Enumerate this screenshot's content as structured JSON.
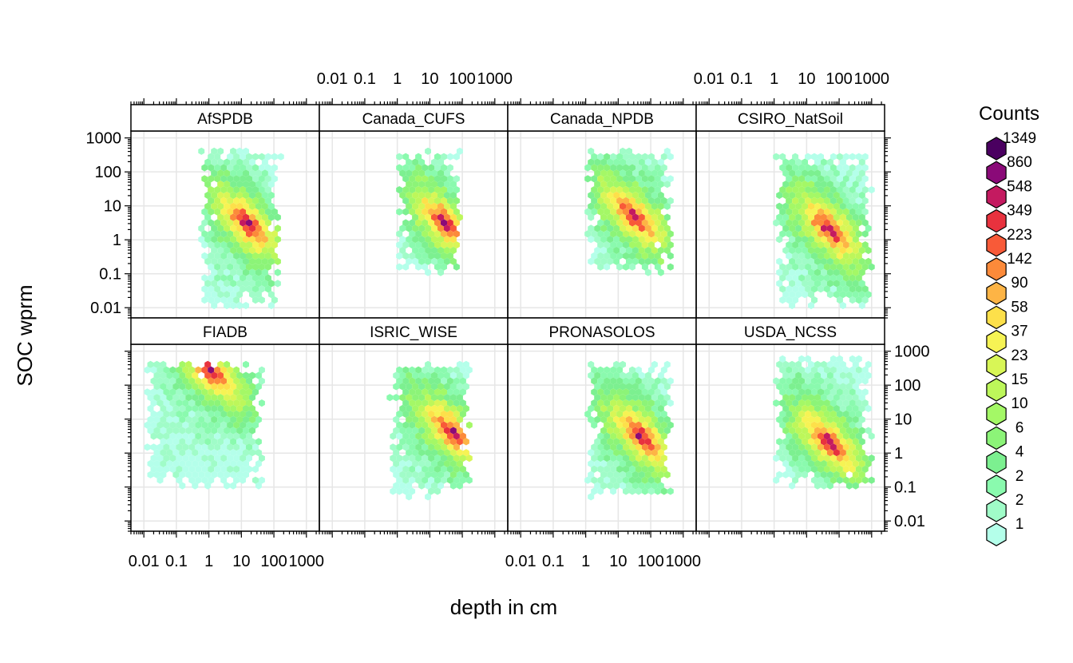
{
  "chart_data": {
    "type": "heatmap",
    "subtype": "hexbin",
    "xlabel": "depth in cm",
    "ylabel": "SOC wprm",
    "x_scale": "log10",
    "y_scale": "log10",
    "x_ticks": [
      "0.01",
      "0.1",
      "1",
      "10",
      "100",
      "1000"
    ],
    "y_ticks": [
      "0.01",
      "0.1",
      "1",
      "10",
      "100",
      "1000"
    ],
    "xlim": [
      0.004,
      2500
    ],
    "ylim": [
      0.005,
      1600
    ],
    "grid": true,
    "legend": {
      "title": "Counts",
      "position": "right",
      "labels": [
        "1349",
        "860",
        "548",
        "349",
        "223",
        "142",
        "90",
        "58",
        "37",
        "23",
        "15",
        "10",
        "6",
        "4",
        "2",
        "2",
        "1"
      ],
      "colors": [
        "#4a0060",
        "#8a0a78",
        "#c41a60",
        "#e8323e",
        "#f85a38",
        "#fc8a3a",
        "#fdb445",
        "#fde04a",
        "#f6f354",
        "#d8f656",
        "#bdf75a",
        "#a4f866",
        "#8cf478",
        "#7cf090",
        "#8afaae",
        "#a0fcc8",
        "#b4ffea"
      ]
    },
    "panels": [
      {
        "name": "AfSPDB",
        "row": 0,
        "col": 0,
        "x_range": [
          0.5,
          200
        ],
        "y_range": [
          0.01,
          500
        ],
        "peak": {
          "x": 15,
          "y": 3
        }
      },
      {
        "name": "Canada_CUFS",
        "row": 0,
        "col": 1,
        "x_range": [
          1,
          100
        ],
        "y_range": [
          0.1,
          500
        ],
        "peak": {
          "x": 30,
          "y": 3
        }
      },
      {
        "name": "Canada_NPDB",
        "row": 0,
        "col": 2,
        "x_range": [
          1,
          500
        ],
        "y_range": [
          0.1,
          500
        ],
        "peak": {
          "x": 30,
          "y": 5
        }
      },
      {
        "name": "CSIRO_NatSoil",
        "row": 0,
        "col": 3,
        "x_range": [
          1,
          1000
        ],
        "y_range": [
          0.01,
          400
        ],
        "peak": {
          "x": 50,
          "y": 2
        }
      },
      {
        "name": "FIADB",
        "row": 1,
        "col": 0,
        "x_range": [
          0.01,
          50
        ],
        "y_range": [
          0.1,
          500
        ],
        "peak": {
          "x": 1,
          "y": 300
        }
      },
      {
        "name": "ISRIC_WISE",
        "row": 1,
        "col": 1,
        "x_range": [
          0.5,
          200
        ],
        "y_range": [
          0.05,
          500
        ],
        "peak": {
          "x": 50,
          "y": 4
        }
      },
      {
        "name": "PRONASOLOS",
        "row": 1,
        "col": 2,
        "x_range": [
          1,
          500
        ],
        "y_range": [
          0.05,
          500
        ],
        "peak": {
          "x": 50,
          "y": 3
        }
      },
      {
        "name": "USDA_NCSS",
        "row": 1,
        "col": 3,
        "x_range": [
          1,
          1000
        ],
        "y_range": [
          0.1,
          700
        ],
        "peak": {
          "x": 50,
          "y": 2
        }
      }
    ]
  }
}
